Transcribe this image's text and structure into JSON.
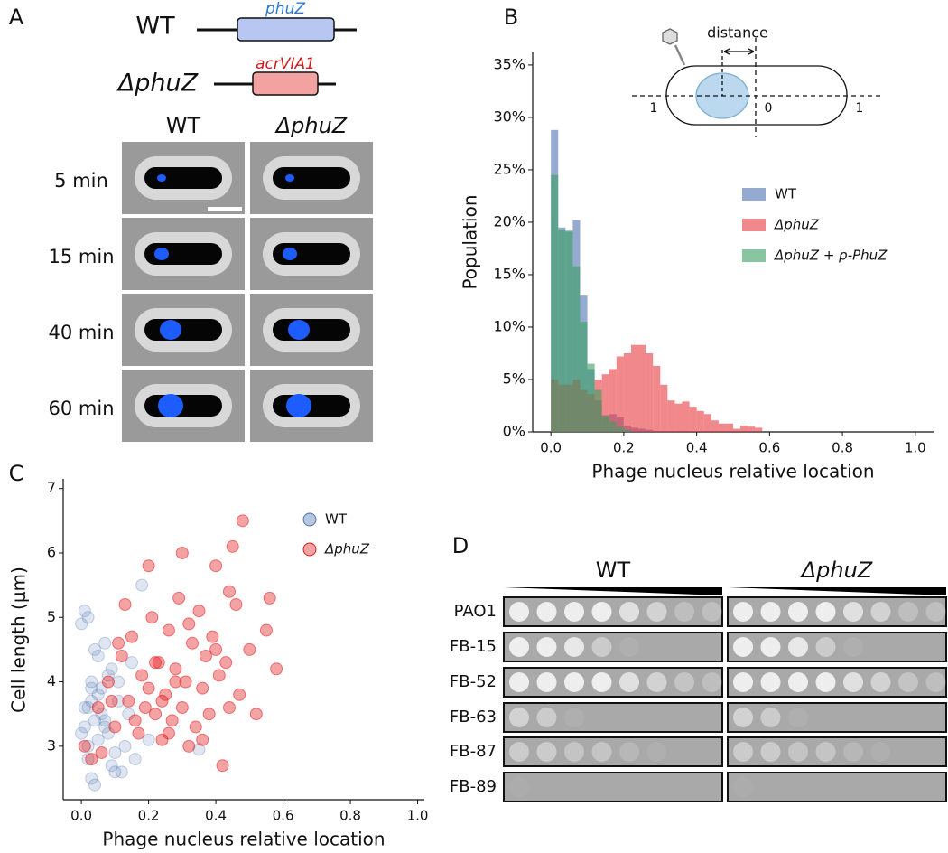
{
  "panel_labels": [
    "A",
    "B",
    "C",
    "D"
  ],
  "panel_a": {
    "constructs": [
      {
        "strain": "WT",
        "gene": "phuZ"
      },
      {
        "strain": "ΔphuZ",
        "gene": "acrVIA1"
      }
    ],
    "columns": [
      "WT",
      "ΔphuZ"
    ],
    "rows": [
      "5 min",
      "15 min",
      "40 min",
      "60 min"
    ]
  },
  "chart_data": [
    {
      "type": "histogram",
      "xlabel": "Phage nucleus relative location",
      "ylabel": "Population",
      "annotations": [
        "distance",
        "1",
        "0",
        "1"
      ],
      "bins": [
        0,
        0.02,
        0.04,
        0.06,
        0.08,
        0.1,
        0.12,
        0.14,
        0.16,
        0.18,
        0.2,
        0.22,
        0.24,
        0.26,
        0.28,
        0.3,
        0.32,
        0.34,
        0.36,
        0.38,
        0.4,
        0.42,
        0.44,
        0.46,
        0.48,
        0.5,
        0.52,
        0.54,
        0.56,
        0.58,
        0.6
      ],
      "series": [
        {
          "name": "WT",
          "color": "#4c72b0",
          "values": [
            28.8,
            19.5,
            19.2,
            20.2,
            13,
            6,
            3,
            1.6,
            1.7,
            1.4,
            0.6,
            0.4,
            0.3,
            0.2,
            0,
            0,
            0,
            0,
            0,
            0,
            0,
            0,
            0,
            0,
            0,
            0,
            0,
            0,
            0,
            0
          ]
        },
        {
          "name": "ΔphuZ",
          "color": "#e8383d",
          "values": [
            5,
            4.5,
            4.5,
            5,
            4,
            3.6,
            5,
            5.5,
            6,
            7.2,
            7.5,
            8.3,
            8.3,
            7.5,
            6.3,
            4.5,
            3,
            2.7,
            2.9,
            2.4,
            2,
            1.7,
            1.1,
            0.8,
            0.8,
            0.3,
            0.6,
            0.5,
            0.4,
            0
          ]
        },
        {
          "name": "ΔphuZ + p-PhuZ",
          "color": "#3a9e60",
          "values": [
            24.5,
            19.3,
            19.1,
            15.8,
            10.5,
            6.5,
            4,
            1.5,
            1,
            0.5,
            0.2,
            0,
            0,
            0,
            0,
            0,
            0,
            0,
            0,
            0,
            0,
            0,
            0,
            0,
            0,
            0,
            0,
            0,
            0,
            0
          ]
        }
      ],
      "xlim": [
        -0.05,
        1.05
      ],
      "ylim": [
        0,
        36.2
      ],
      "xticks": [
        {
          "value": 0,
          "label": "0.0"
        },
        0.2,
        0.4,
        0.6,
        0.8,
        {
          "value": 1,
          "label": "1.0"
        }
      ],
      "yticks": [
        {
          "value": 0,
          "label": "0%"
        },
        {
          "value": 5,
          "label": "5%"
        },
        {
          "value": 10,
          "label": "10%"
        },
        {
          "value": 15,
          "label": "15%"
        },
        {
          "value": 20,
          "label": "20%"
        },
        {
          "value": 25,
          "label": "25%"
        },
        {
          "value": 30,
          "label": "30%"
        },
        {
          "value": 35,
          "label": "35%"
        }
      ],
      "legend": "right"
    },
    {
      "type": "scatter",
      "xlabel": "Phage nucleus relative location",
      "ylabel": "Cell length (μm)",
      "series": [
        {
          "name": "WT",
          "color": "#4c72b0",
          "x": [
            0.01,
            0.02,
            0.03,
            0.05,
            0.07,
            0.09,
            0.11,
            0.13,
            0.02,
            0.04,
            0.06,
            0.08,
            0.1,
            0.0,
            0.01,
            0.03,
            0.05,
            0.12,
            0.15,
            0.18,
            0.02,
            0.04,
            0.07,
            0.09,
            0.01,
            0.03,
            0.06,
            0.14,
            0.2,
            0.08,
            0.0,
            0.05,
            0.1,
            0.03,
            0.11,
            0.16,
            0.35,
            0.07,
            0.02,
            0.04
          ],
          "values": [
            3.3,
            3.6,
            3.9,
            3.1,
            3.4,
            4.2,
            3.7,
            3.0,
            2.8,
            4.5,
            3.5,
            3.2,
            2.9,
            4.9,
            5.1,
            4.0,
            3.8,
            2.6,
            4.3,
            5.5,
            3.0,
            3.4,
            4.6,
            2.7,
            3.6,
            2.5,
            3.9,
            3.5,
            3.1,
            4.1,
            3.2,
            4.4,
            2.6,
            3.7,
            4.0,
            2.8,
            2.95,
            3.3,
            5.0,
            2.4
          ]
        },
        {
          "name": "ΔphuZ",
          "color": "#e31a1c",
          "x": [
            0.01,
            0.03,
            0.05,
            0.08,
            0.1,
            0.12,
            0.14,
            0.15,
            0.17,
            0.18,
            0.2,
            0.21,
            0.22,
            0.23,
            0.24,
            0.25,
            0.26,
            0.27,
            0.28,
            0.29,
            0.3,
            0.31,
            0.32,
            0.33,
            0.34,
            0.35,
            0.36,
            0.37,
            0.38,
            0.39,
            0.4,
            0.41,
            0.42,
            0.43,
            0.44,
            0.45,
            0.46,
            0.47,
            0.48,
            0.5,
            0.52,
            0.55,
            0.58,
            0.56,
            0.2,
            0.16,
            0.13,
            0.24,
            0.28,
            0.32,
            0.36,
            0.4,
            0.44,
            0.19,
            0.22,
            0.26,
            0.06,
            0.09,
            0.11,
            0.3
          ],
          "values": [
            3.0,
            2.8,
            3.6,
            4.0,
            3.3,
            4.4,
            3.7,
            4.7,
            3.2,
            4.1,
            3.9,
            5.0,
            3.5,
            4.3,
            3.1,
            3.8,
            4.8,
            3.4,
            4.2,
            5.3,
            3.6,
            4.0,
            3.0,
            4.6,
            3.3,
            5.1,
            3.9,
            4.4,
            3.5,
            4.7,
            5.8,
            4.1,
            2.7,
            4.3,
            3.6,
            6.1,
            5.2,
            3.8,
            6.5,
            4.5,
            3.5,
            4.8,
            4.2,
            5.3,
            5.8,
            3.4,
            5.2,
            3.7,
            4.0,
            4.9,
            3.1,
            4.5,
            5.4,
            3.6,
            4.3,
            3.2,
            2.9,
            3.7,
            4.6,
            6.0
          ]
        }
      ],
      "xlim": [
        -0.054,
        1.02
      ],
      "ylim": [
        2.17,
        7.15
      ],
      "xticks": [
        {
          "value": 0,
          "label": "0.0"
        },
        0.2,
        0.4,
        0.6,
        0.8,
        {
          "value": 1,
          "label": "1.0"
        }
      ],
      "yticks": [
        3,
        4,
        5,
        6,
        7
      ],
      "legend": "upper right"
    }
  ],
  "panel_d": {
    "columns": [
      "WT",
      "ΔphuZ"
    ],
    "rows": [
      "PAO1",
      "FB-15",
      "FB-52",
      "FB-63",
      "FB-87",
      "FB-89"
    ]
  }
}
